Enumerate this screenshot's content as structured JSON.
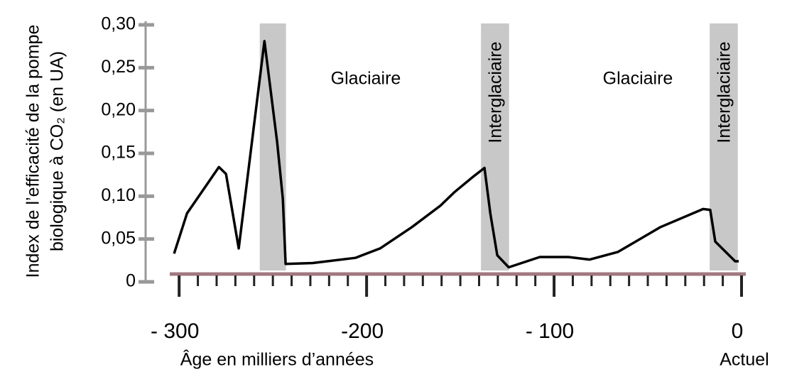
{
  "chart_data": {
    "type": "line",
    "ylabel": [
      "Index de l’efficacité de la pompe",
      "biologique à CO₂ (en UA)"
    ],
    "xlabel": "Âge en milliers d’années",
    "xend_label": "Actuel",
    "xlim": [
      -305,
      0
    ],
    "ylim": [
      0,
      0.3
    ],
    "xticks": [
      {
        "value": -300,
        "label": "- 300"
      },
      {
        "value": -200,
        "label": "-200"
      },
      {
        "value": -100,
        "label": "- 100"
      },
      0
    ],
    "xminorticks": [
      -290,
      -280,
      -270,
      -260,
      -250,
      -240,
      -230,
      -220,
      -210,
      -190,
      -180,
      -170,
      -160,
      -150,
      -140,
      -130,
      -120,
      -110,
      -90,
      -80,
      -70,
      -60,
      -50,
      -40,
      -30,
      -20,
      -10
    ],
    "yticks": [
      0,
      {
        "value": 0.05,
        "label": "0,05"
      },
      {
        "value": 0.1,
        "label": "0,10"
      },
      {
        "value": 0.15,
        "label": "0,15"
      },
      {
        "value": 0.2,
        "label": "0,20"
      },
      {
        "value": 0.25,
        "label": "0,25"
      },
      {
        "value": 0.3,
        "label": "0,30"
      }
    ],
    "bands": [
      {
        "start": -257,
        "end": -243
      },
      {
        "start": -139,
        "end": -124,
        "label": "Interglaciaire"
      },
      {
        "start": -17,
        "end": -2,
        "label": "Interglaciaire"
      }
    ],
    "annotations": [
      "Glaciaire",
      "Glaciaire"
    ],
    "color": "#000000",
    "band_color": "#c8c8c8",
    "x": [
      -302.7,
      -295.8,
      -278.8,
      -275,
      -268.2,
      -254.5,
      -247.7,
      -244.7,
      -243.2,
      -228.8,
      -206,
      -192.8,
      -175.8,
      -160.6,
      -153,
      -143.6,
      -137.1,
      -134,
      -130.3,
      -124.2,
      -107.6,
      -92.4,
      -81,
      -65.9,
      -43.2,
      -20.5,
      -16.7,
      -14,
      -3.4,
      -1.5
    ],
    "values": [
      0.033,
      0.08,
      0.134,
      0.126,
      0.039,
      0.281,
      0.163,
      0.097,
      0.021,
      0.022,
      0.028,
      0.039,
      0.064,
      0.089,
      0.105,
      0.122,
      0.133,
      0.08,
      0.031,
      0.017,
      0.029,
      0.029,
      0.026,
      0.035,
      0.064,
      0.085,
      0.084,
      0.047,
      0.024,
      0.024
    ]
  }
}
